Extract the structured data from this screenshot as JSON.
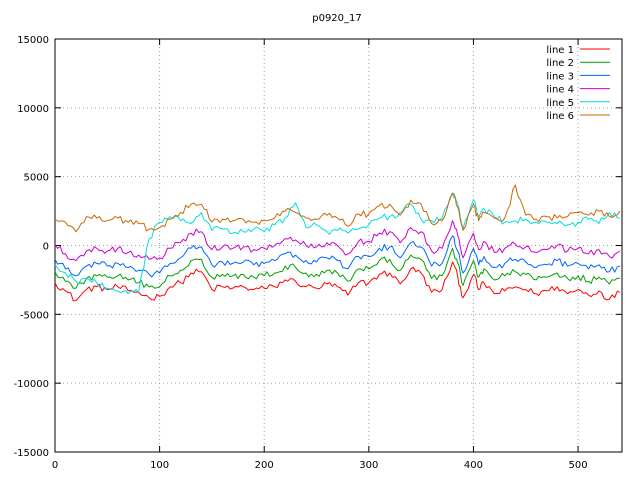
{
  "chart_data": {
    "type": "line",
    "title": "p0920_17",
    "xlabel": "",
    "ylabel": "",
    "xlim": [
      0,
      542
    ],
    "ylim": [
      -15000,
      15000
    ],
    "x_ticks": [
      0,
      100,
      200,
      300,
      400,
      500
    ],
    "y_ticks": [
      -15000,
      -10000,
      -5000,
      0,
      5000,
      10000,
      15000
    ],
    "grid": true,
    "legend_position": "top-right",
    "x": [
      0,
      10,
      20,
      30,
      40,
      50,
      60,
      70,
      80,
      90,
      100,
      110,
      120,
      130,
      140,
      150,
      160,
      170,
      180,
      190,
      200,
      210,
      220,
      230,
      240,
      250,
      260,
      270,
      280,
      290,
      300,
      310,
      320,
      330,
      340,
      350,
      360,
      370,
      380,
      385,
      390,
      400,
      405,
      410,
      420,
      430,
      440,
      450,
      460,
      470,
      480,
      490,
      500,
      510,
      520,
      530,
      540
    ],
    "series": [
      {
        "name": "line 1",
        "color": "#ff0000",
        "values": [
          -2700,
          -3300,
          -4000,
          -3200,
          -3000,
          -3200,
          -3000,
          -3300,
          -3400,
          -3800,
          -3700,
          -3000,
          -2700,
          -2000,
          -1900,
          -3200,
          -3000,
          -3100,
          -3000,
          -3200,
          -3100,
          -3000,
          -2500,
          -2600,
          -3000,
          -3100,
          -2800,
          -3000,
          -3600,
          -2700,
          -2700,
          -2100,
          -2000,
          -2800,
          -1700,
          -2000,
          -3400,
          -3200,
          -1200,
          -2300,
          -3800,
          -2100,
          -3200,
          -2700,
          -3500,
          -3300,
          -3000,
          -3200,
          -3500,
          -3300,
          -3000,
          -3500,
          -3200,
          -3600,
          -3300,
          -3900,
          -3400
        ]
      },
      {
        "name": "line 2",
        "color": "#00a000",
        "values": [
          -1900,
          -2600,
          -3100,
          -2400,
          -2200,
          -2300,
          -2200,
          -2500,
          -2700,
          -3000,
          -3000,
          -2200,
          -1800,
          -1100,
          -1000,
          -2300,
          -2100,
          -2200,
          -2100,
          -2300,
          -2200,
          -2000,
          -1500,
          -1600,
          -2000,
          -2100,
          -1800,
          -2000,
          -2600,
          -1700,
          -1700,
          -1100,
          -1000,
          -1800,
          -700,
          -1000,
          -2400,
          -2200,
          -200,
          -1300,
          -2900,
          -1100,
          -2300,
          -1700,
          -2500,
          -2200,
          -1900,
          -2100,
          -2500,
          -2300,
          -2000,
          -2400,
          -2200,
          -2600,
          -2300,
          -2800,
          -2400
        ]
      },
      {
        "name": "line 3",
        "color": "#0066ff",
        "values": [
          -1000,
          -1700,
          -2200,
          -1500,
          -1300,
          -1500,
          -1300,
          -1600,
          -1800,
          -2100,
          -2000,
          -1300,
          -900,
          -200,
          -100,
          -1400,
          -1200,
          -1300,
          -1200,
          -1400,
          -1300,
          -1100,
          -600,
          -700,
          -1100,
          -1200,
          -900,
          -1100,
          -1700,
          -800,
          -800,
          -200,
          -100,
          -900,
          200,
          -100,
          -1500,
          -1300,
          700,
          -400,
          -2000,
          -200,
          -1400,
          -800,
          -1600,
          -1300,
          -1000,
          -1200,
          -1600,
          -1400,
          -1100,
          -1500,
          -1300,
          -1700,
          -1400,
          -1900,
          -1500
        ]
      },
      {
        "name": "line 4",
        "color": "#cc00cc",
        "values": [
          100,
          -600,
          -1100,
          -400,
          -200,
          -400,
          -200,
          -500,
          -700,
          -1000,
          -900,
          -200,
          200,
          900,
          1000,
          -300,
          -100,
          -200,
          -100,
          -300,
          -200,
          0,
          500,
          400,
          0,
          -100,
          200,
          0,
          -600,
          300,
          300,
          900,
          1000,
          200,
          1300,
          1000,
          -400,
          -200,
          1800,
          700,
          -900,
          900,
          -300,
          300,
          -500,
          -200,
          100,
          -100,
          -500,
          -300,
          0,
          -400,
          -200,
          -600,
          -300,
          -800,
          -400
        ]
      },
      {
        "name": "line 5",
        "color": "#00dddd",
        "values": [
          -1400,
          -2000,
          -2600,
          -2400,
          -2700,
          -3100,
          -3300,
          -3500,
          -3400,
          500,
          1700,
          2100,
          1800,
          1600,
          2400,
          1100,
          1200,
          900,
          1000,
          1200,
          1000,
          1500,
          2000,
          3100,
          1300,
          1500,
          1000,
          1100,
          900,
          1200,
          1500,
          2000,
          2100,
          2400,
          3000,
          1900,
          1800,
          2000,
          3800,
          3000,
          1200,
          3300,
          2100,
          2700,
          2100,
          1700,
          1800,
          1900,
          1700,
          1700,
          1600,
          1500,
          1700,
          1900,
          1600,
          2400,
          2000
        ]
      },
      {
        "name": "line 6",
        "color": "#cc6600",
        "values": [
          1900,
          1700,
          1000,
          2100,
          2000,
          1800,
          2000,
          1700,
          1600,
          1200,
          1300,
          1900,
          2400,
          3000,
          3000,
          1700,
          1900,
          1800,
          1900,
          1700,
          1800,
          2000,
          2500,
          2400,
          2000,
          1900,
          2200,
          2000,
          1400,
          2300,
          2300,
          2900,
          3000,
          2200,
          3300,
          3000,
          1600,
          1800,
          3800,
          2800,
          1100,
          3000,
          1800,
          2400,
          2000,
          2000,
          4400,
          2200,
          1900,
          2100,
          2000,
          2100,
          2400,
          2200,
          2500,
          2100,
          2500
        ]
      }
    ]
  }
}
